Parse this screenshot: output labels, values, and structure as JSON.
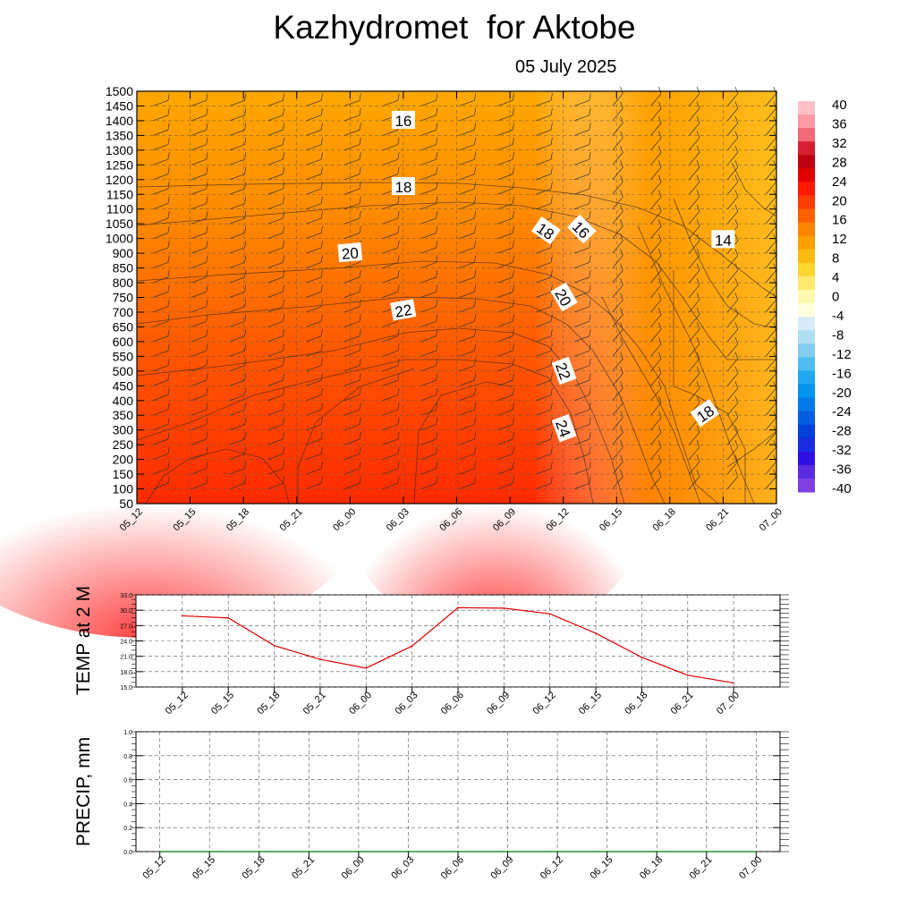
{
  "title": "Kazhydromet  for Aktobe",
  "subtitle": "05 July 2025",
  "colors": {
    "line_temp": "#e00000",
    "line_precip": "#007a00",
    "grid": "#444444"
  },
  "chart_data": [
    {
      "type": "heatmap",
      "name": "cross-section",
      "x": [
        "05_12",
        "05_15",
        "05_18",
        "05_21",
        "06_00",
        "06_03",
        "06_06",
        "06_09",
        "06_12",
        "06_15",
        "06_18",
        "06_21",
        "07_00"
      ],
      "y_ticks": [
        50,
        100,
        150,
        200,
        250,
        300,
        350,
        400,
        450,
        500,
        550,
        600,
        650,
        700,
        750,
        800,
        850,
        900,
        1000,
        1050,
        1100,
        1150,
        1200,
        1250,
        1300,
        1350,
        1400,
        1450,
        1500
      ],
      "contour_labels": [
        {
          "value": "16",
          "x": "06_03",
          "y": 1400,
          "angle": 0
        },
        {
          "value": "18",
          "x": "06_03",
          "y": 1175,
          "angle": 0
        },
        {
          "value": "20",
          "x": "06_00",
          "y": 900,
          "angle": -5
        },
        {
          "value": "22",
          "x": "06_03",
          "y": 705,
          "angle": -10
        },
        {
          "value": "18",
          "x": "06_11",
          "y": 1025,
          "angle": 35
        },
        {
          "value": "16",
          "x": "06_13",
          "y": 1030,
          "angle": 45
        },
        {
          "value": "20",
          "x": "06_12",
          "y": 750,
          "angle": 60
        },
        {
          "value": "22",
          "x": "06_12",
          "y": 500,
          "angle": 70
        },
        {
          "value": "24",
          "x": "06_12",
          "y": 305,
          "angle": 70
        },
        {
          "value": "14",
          "x": "06_21",
          "y": 990,
          "angle": 0
        },
        {
          "value": "18",
          "x": "06_20",
          "y": 355,
          "angle": -35
        }
      ],
      "colorbar": {
        "ticks": [
          "40",
          "36",
          "32",
          "28",
          "24",
          "20",
          "16",
          "12",
          "8",
          "4",
          "0",
          "-4",
          "-8",
          "-12",
          "-16",
          "-20",
          "-24",
          "-28",
          "-32",
          "-36",
          "-40"
        ],
        "colors": [
          "#ffc0c8",
          "#ff9aa6",
          "#f06a78",
          "#d42030",
          "#c00010",
          "#e00000",
          "#ff1a00",
          "#ff3c00",
          "#ff6000",
          "#ff8400",
          "#ffa000",
          "#ffbc10",
          "#ffd530",
          "#ffea70",
          "#fff8b0",
          "#ffffdc",
          "#d6ecf6",
          "#b0dff4",
          "#84cdf0",
          "#50bcf0",
          "#20a8f0",
          "#0094ee",
          "#007ae6",
          "#005ee0",
          "#0040d8",
          "#1a2ce0",
          "#3010e0",
          "#5a2ce0",
          "#8040e0"
        ]
      }
    },
    {
      "type": "line",
      "ylabel": "TEMP at 2 M",
      "categories": [
        "05_12",
        "05_15",
        "05_18",
        "05_21",
        "06_00",
        "06_03",
        "06_06",
        "06_09",
        "06_12",
        "06_15",
        "06_18",
        "06_21",
        "07_00"
      ],
      "values": [
        28.9,
        28.5,
        23.1,
        20.4,
        18.7,
        23.0,
        30.5,
        30.4,
        29.3,
        25.5,
        20.8,
        17.3,
        15.8
      ],
      "ylim": [
        15.0,
        33.0
      ],
      "yticks": [
        "15.0",
        "18.0",
        "21.0",
        "24.0",
        "27.0",
        "30.0",
        "33.0"
      ]
    },
    {
      "type": "line",
      "ylabel": "PRECIP, mm",
      "categories": [
        "05_12",
        "05_15",
        "05_18",
        "05_21",
        "06_00",
        "06_03",
        "06_06",
        "06_09",
        "06_12",
        "06_15",
        "06_18",
        "06_21",
        "07_00"
      ],
      "values": [
        0,
        0,
        0,
        0,
        0,
        0,
        0,
        0,
        0,
        0,
        0,
        0,
        0
      ],
      "ylim": [
        0.0,
        1.0
      ],
      "yticks": [
        "0.0",
        "0.2",
        "0.4",
        "0.6",
        "0.8",
        "1.0"
      ]
    }
  ]
}
